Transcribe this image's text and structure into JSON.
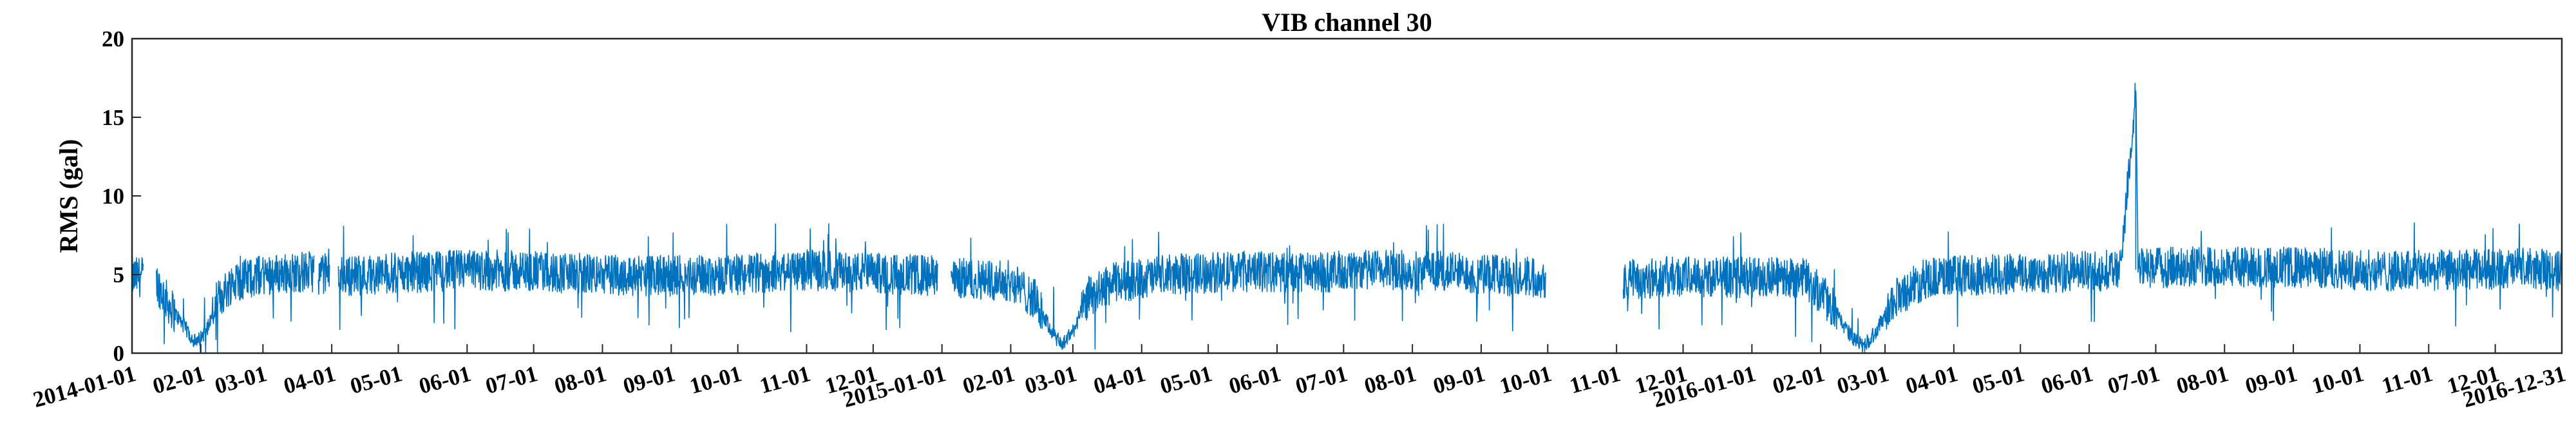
{
  "chart_data": {
    "type": "line",
    "title": "VIB channel 30",
    "xlabel": "",
    "ylabel": "RMS (gal)",
    "xlim": [
      "2014-01-01",
      "2016-12-31"
    ],
    "ylim": [
      0,
      20
    ],
    "yticks": [
      0,
      5,
      10,
      15,
      20
    ],
    "xtick_labels": [
      {
        "date": "2014-01-01",
        "label": "2014-01-01"
      },
      {
        "date": "2014-02-01",
        "label": "02-01"
      },
      {
        "date": "2014-03-01",
        "label": "03-01"
      },
      {
        "date": "2014-04-01",
        "label": "04-01"
      },
      {
        "date": "2014-05-01",
        "label": "05-01"
      },
      {
        "date": "2014-06-01",
        "label": "06-01"
      },
      {
        "date": "2014-07-01",
        "label": "07-01"
      },
      {
        "date": "2014-08-01",
        "label": "08-01"
      },
      {
        "date": "2014-09-01",
        "label": "09-01"
      },
      {
        "date": "2014-10-01",
        "label": "10-01"
      },
      {
        "date": "2014-11-01",
        "label": "11-01"
      },
      {
        "date": "2014-12-01",
        "label": "12-01"
      },
      {
        "date": "2015-01-01",
        "label": "2015-01-01"
      },
      {
        "date": "2015-02-01",
        "label": "02-01"
      },
      {
        "date": "2015-03-01",
        "label": "03-01"
      },
      {
        "date": "2015-04-01",
        "label": "04-01"
      },
      {
        "date": "2015-05-01",
        "label": "05-01"
      },
      {
        "date": "2015-06-01",
        "label": "06-01"
      },
      {
        "date": "2015-07-01",
        "label": "07-01"
      },
      {
        "date": "2015-08-01",
        "label": "08-01"
      },
      {
        "date": "2015-09-01",
        "label": "09-01"
      },
      {
        "date": "2015-10-01",
        "label": "10-01"
      },
      {
        "date": "2015-11-01",
        "label": "11-01"
      },
      {
        "date": "2015-12-01",
        "label": "12-01"
      },
      {
        "date": "2016-01-01",
        "label": "2016-01-01"
      },
      {
        "date": "2016-02-01",
        "label": "02-01"
      },
      {
        "date": "2016-03-01",
        "label": "03-01"
      },
      {
        "date": "2016-04-01",
        "label": "04-01"
      },
      {
        "date": "2016-05-01",
        "label": "05-01"
      },
      {
        "date": "2016-06-01",
        "label": "06-01"
      },
      {
        "date": "2016-07-01",
        "label": "07-01"
      },
      {
        "date": "2016-08-01",
        "label": "08-01"
      },
      {
        "date": "2016-09-01",
        "label": "09-01"
      },
      {
        "date": "2016-10-01",
        "label": "10-01"
      },
      {
        "date": "2016-11-01",
        "label": "11-01"
      },
      {
        "date": "2016-12-01",
        "label": "12-01"
      },
      {
        "date": "2016-12-31",
        "label": "2016-12-31"
      }
    ],
    "series": [
      {
        "color": "#0072BD",
        "segments": [
          {
            "start": "2014-01-01",
            "end": "2014-01-06"
          },
          {
            "start": "2014-01-12",
            "end": "2014-03-24"
          },
          {
            "start": "2014-03-26",
            "end": "2014-03-31"
          },
          {
            "start": "2014-04-04",
            "end": "2014-12-30"
          },
          {
            "start": "2015-01-05",
            "end": "2015-09-30"
          },
          {
            "start": "2015-11-04",
            "end": "2016-12-31"
          }
        ],
        "points": [
          {
            "x": "2014-01-01",
            "y": 4.8
          },
          {
            "x": "2014-01-06",
            "y": 4.9
          },
          {
            "x": "2014-01-12",
            "y": 4.5
          },
          {
            "x": "2014-01-18",
            "y": 3.0
          },
          {
            "x": "2014-01-25",
            "y": 1.6
          },
          {
            "x": "2014-01-30",
            "y": 0.6
          },
          {
            "x": "2014-02-04",
            "y": 1.6
          },
          {
            "x": "2014-02-08",
            "y": 3.2
          },
          {
            "x": "2014-02-15",
            "y": 4.5
          },
          {
            "x": "2014-03-01",
            "y": 5.0
          },
          {
            "x": "2014-03-24",
            "y": 5.2
          },
          {
            "x": "2014-03-26",
            "y": 5.0
          },
          {
            "x": "2014-03-31",
            "y": 5.1
          },
          {
            "x": "2014-04-04",
            "y": 4.9
          },
          {
            "x": "2014-05-01",
            "y": 5.1
          },
          {
            "x": "2014-06-01",
            "y": 5.3
          },
          {
            "x": "2014-07-01",
            "y": 5.2
          },
          {
            "x": "2014-08-01",
            "y": 5.0
          },
          {
            "x": "2014-09-01",
            "y": 4.9
          },
          {
            "x": "2014-10-01",
            "y": 5.0
          },
          {
            "x": "2014-11-01",
            "y": 5.3
          },
          {
            "x": "2014-12-01",
            "y": 5.1
          },
          {
            "x": "2014-12-30",
            "y": 4.9
          },
          {
            "x": "2015-01-05",
            "y": 4.8
          },
          {
            "x": "2015-02-01",
            "y": 4.6
          },
          {
            "x": "2015-02-12",
            "y": 3.4
          },
          {
            "x": "2015-02-20",
            "y": 1.2
          },
          {
            "x": "2015-02-24",
            "y": 0.5
          },
          {
            "x": "2015-03-01",
            "y": 1.4
          },
          {
            "x": "2015-03-08",
            "y": 3.6
          },
          {
            "x": "2015-03-20",
            "y": 4.5
          },
          {
            "x": "2015-04-15",
            "y": 5.0
          },
          {
            "x": "2015-05-15",
            "y": 5.2
          },
          {
            "x": "2015-06-15",
            "y": 5.1
          },
          {
            "x": "2015-07-15",
            "y": 5.3
          },
          {
            "x": "2015-08-15",
            "y": 5.2
          },
          {
            "x": "2015-09-30",
            "y": 4.8
          },
          {
            "x": "2015-11-04",
            "y": 4.7
          },
          {
            "x": "2015-12-01",
            "y": 4.9
          },
          {
            "x": "2016-01-01",
            "y": 4.8
          },
          {
            "x": "2016-01-25",
            "y": 4.8
          },
          {
            "x": "2016-02-05",
            "y": 3.2
          },
          {
            "x": "2016-02-15",
            "y": 1.0
          },
          {
            "x": "2016-02-20",
            "y": 0.4
          },
          {
            "x": "2016-02-26",
            "y": 1.4
          },
          {
            "x": "2016-03-05",
            "y": 3.5
          },
          {
            "x": "2016-03-20",
            "y": 4.8
          },
          {
            "x": "2016-04-15",
            "y": 5.0
          },
          {
            "x": "2016-05-15",
            "y": 5.1
          },
          {
            "x": "2016-06-15",
            "y": 5.3
          },
          {
            "x": "2016-06-22",
            "y": 16.7
          },
          {
            "x": "2016-06-23",
            "y": 5.4
          },
          {
            "x": "2016-07-15",
            "y": 5.5
          },
          {
            "x": "2016-08-15",
            "y": 5.5
          },
          {
            "x": "2016-09-15",
            "y": 5.4
          },
          {
            "x": "2016-10-15",
            "y": 5.2
          },
          {
            "x": "2016-11-15",
            "y": 5.3
          },
          {
            "x": "2016-12-15",
            "y": 5.4
          },
          {
            "x": "2016-12-31",
            "y": 5.2
          }
        ]
      }
    ],
    "grid": false,
    "legend": "none"
  }
}
